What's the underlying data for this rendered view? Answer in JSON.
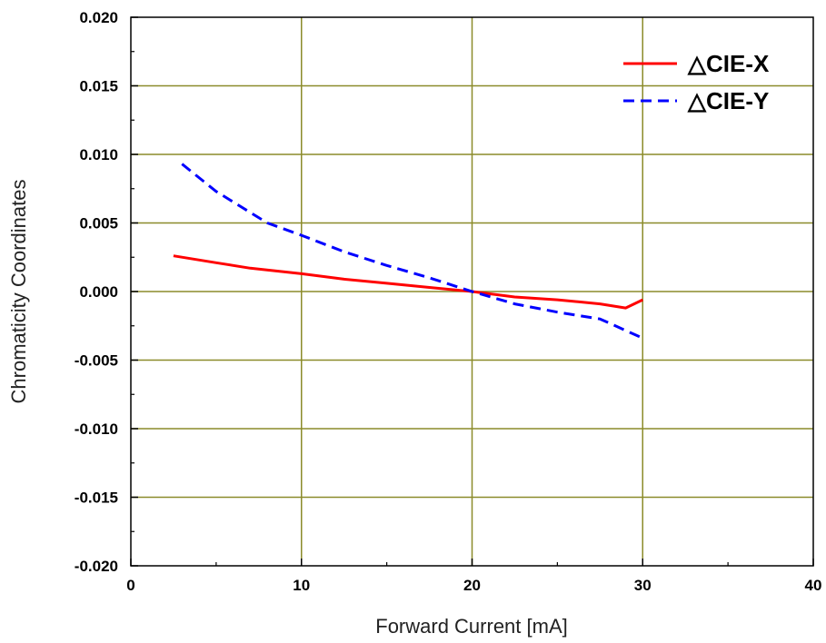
{
  "chart_data": {
    "type": "line",
    "xlabel": "Forward Current [mA]",
    "ylabel": "Chromaticity Coordinates",
    "xlim": [
      0,
      40
    ],
    "ylim": [
      -0.02,
      0.02
    ],
    "xticks": [
      0,
      10,
      20,
      30,
      40
    ],
    "xtick_labels": [
      "0",
      "10",
      "20",
      "30",
      "40"
    ],
    "yticks": [
      -0.02,
      -0.015,
      -0.01,
      -0.005,
      0,
      0.005,
      0.01,
      0.015,
      0.02
    ],
    "ytick_labels": [
      "-0.020",
      "-0.015",
      "-0.010",
      "-0.005",
      "0.000",
      "0.005",
      "0.010",
      "0.015",
      "0.020"
    ],
    "grid": true,
    "grid_color": "#8b8b2a",
    "legend_position": "top-right",
    "series": [
      {
        "name": "△CIE-X",
        "color": "#ff0000",
        "style": "solid",
        "x": [
          2.5,
          5,
          7,
          10,
          12.5,
          15,
          17.5,
          20,
          22.5,
          25,
          27.5,
          29,
          30
        ],
        "y": [
          0.0026,
          0.0021,
          0.0017,
          0.0013,
          0.0009,
          0.0006,
          0.0003,
          0.0,
          -0.0004,
          -0.0006,
          -0.0009,
          -0.0012,
          -0.0006
        ]
      },
      {
        "name": "△CIE-Y",
        "color": "#0000ff",
        "style": "dashed",
        "x": [
          3,
          5,
          8,
          10,
          12.5,
          15,
          17.5,
          20,
          22.5,
          25,
          27.5,
          30
        ],
        "y": [
          0.0093,
          0.0073,
          0.005,
          0.0041,
          0.0029,
          0.0019,
          0.001,
          0.0,
          -0.0009,
          -0.0015,
          -0.002,
          -0.0034
        ]
      }
    ]
  }
}
